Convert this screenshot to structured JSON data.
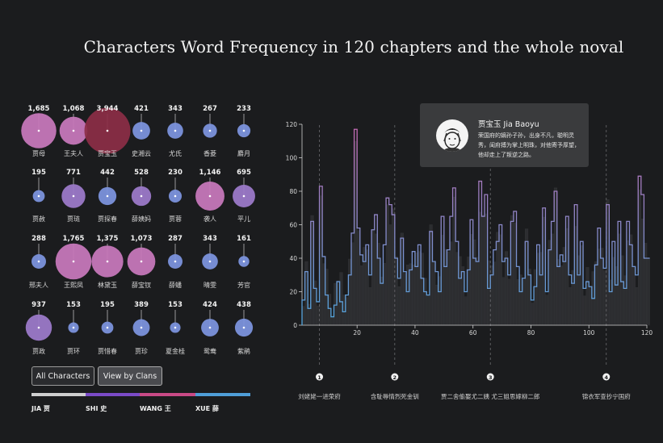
{
  "title": "Characters Word Frequency in 120 chapters and the whole noval",
  "buttons": {
    "all": "All Characters",
    "clans": "View by Clans"
  },
  "clans": [
    {
      "label": "JIA 贾",
      "color": "#cfcfcf"
    },
    {
      "label": "SHI 史",
      "color": "#7b4bc8"
    },
    {
      "label": "WANG 王",
      "color": "#c94a86"
    },
    {
      "label": "XUE 薛",
      "color": "#4f9ed8"
    }
  ],
  "colors": {
    "low": "#7b92dc",
    "mid": "#9b79c8",
    "high": "#c577b9",
    "selected": "#8c2e46",
    "bar_dark": "#3a3b3d"
  },
  "characters": [
    {
      "name": "贾母",
      "count": "1,685",
      "value": 1685
    },
    {
      "name": "王夫人",
      "count": "1,068",
      "value": 1068
    },
    {
      "name": "贾宝玉",
      "count": "3,944",
      "value": 3944,
      "selected": true
    },
    {
      "name": "史湘云",
      "count": "421",
      "value": 421
    },
    {
      "name": "尤氏",
      "count": "343",
      "value": 343
    },
    {
      "name": "香菱",
      "count": "267",
      "value": 267
    },
    {
      "name": "麝月",
      "count": "233",
      "value": 233
    },
    {
      "name": "贾赦",
      "count": "195",
      "value": 195
    },
    {
      "name": "贾琏",
      "count": "771",
      "value": 771
    },
    {
      "name": "贾探春",
      "count": "442",
      "value": 442
    },
    {
      "name": "薛姨妈",
      "count": "528",
      "value": 528
    },
    {
      "name": "贾蓉",
      "count": "230",
      "value": 230
    },
    {
      "name": "袭人",
      "count": "1,146",
      "value": 1146
    },
    {
      "name": "平儿",
      "count": "695",
      "value": 695
    },
    {
      "name": "邢夫人",
      "count": "288",
      "value": 288
    },
    {
      "name": "王熙凤",
      "count": "1,765",
      "value": 1765
    },
    {
      "name": "林黛玉",
      "count": "1,375",
      "value": 1375
    },
    {
      "name": "薛宝钗",
      "count": "1,073",
      "value": 1073
    },
    {
      "name": "薛蟠",
      "count": "287",
      "value": 287
    },
    {
      "name": "晴雯",
      "count": "343",
      "value": 343
    },
    {
      "name": "芳官",
      "count": "161",
      "value": 161
    },
    {
      "name": "贾政",
      "count": "937",
      "value": 937
    },
    {
      "name": "贾环",
      "count": "153",
      "value": 153
    },
    {
      "name": "贾惜春",
      "count": "195",
      "value": 195
    },
    {
      "name": "贾珍",
      "count": "389",
      "value": 389
    },
    {
      "name": "夏金桂",
      "count": "153",
      "value": 153
    },
    {
      "name": "鸳鸯",
      "count": "424",
      "value": 424
    },
    {
      "name": "紫鹃",
      "count": "438",
      "value": 438
    }
  ],
  "tooltip": {
    "name": "贾宝玉 Jia Baoyu",
    "desc": "荣国府的嫡孙子孙，出身不凡，聪明灵秀，闺府搏为掌上明珠，对他寄予厚望，他却走上了叛逆之路。"
  },
  "chart_data": {
    "type": "line",
    "x_label": "",
    "y_label": "",
    "xlim": [
      1,
      120
    ],
    "ylim": [
      0,
      120
    ],
    "x_ticks": [
      20,
      40,
      60,
      80,
      100,
      120
    ],
    "y_ticks": [
      0,
      20,
      40,
      60,
      80,
      100,
      120
    ],
    "gradient": [
      "#4fa6de",
      "#c46bb4"
    ],
    "series": [
      {
        "values": [
          15,
          32,
          10,
          62,
          22,
          14,
          83,
          41,
          18,
          10,
          5,
          12,
          26,
          14,
          8,
          18,
          30,
          55,
          117,
          58,
          42,
          38,
          48,
          30,
          57,
          66,
          40,
          25,
          48,
          76,
          72,
          66,
          40,
          28,
          52,
          32,
          20,
          33,
          44,
          35,
          48,
          28,
          20,
          18,
          56,
          38,
          32,
          20,
          65,
          35,
          45,
          65,
          82,
          50,
          28,
          32,
          20,
          33,
          63,
          40,
          38,
          86,
          65,
          78,
          22,
          30,
          45,
          50,
          60,
          38,
          40,
          30,
          62,
          68,
          35,
          20,
          28,
          50,
          30,
          15,
          23,
          48,
          30,
          70,
          20,
          45,
          62,
          80,
          35,
          42,
          38,
          65,
          30,
          25,
          72,
          30,
          50,
          22,
          26,
          23,
          16,
          36,
          58,
          40,
          34,
          72,
          20,
          50,
          24,
          62,
          26,
          22,
          62,
          48,
          35,
          30,
          89,
          78,
          40,
          40
        ]
      }
    ],
    "markers": [
      {
        "chapter": 7,
        "num": "1",
        "label": "刘姥姥一进荣府"
      },
      {
        "chapter": 33,
        "num": "2",
        "label": "含耻辱情烈死金钏"
      },
      {
        "chapter": 66,
        "num": "3",
        "label": "贾二舍偷娶尤二姨 尤三姐思嫁柳二郎"
      },
      {
        "chapter": 106,
        "num": "4",
        "label": "锦衣军查抄宁国府"
      }
    ]
  }
}
